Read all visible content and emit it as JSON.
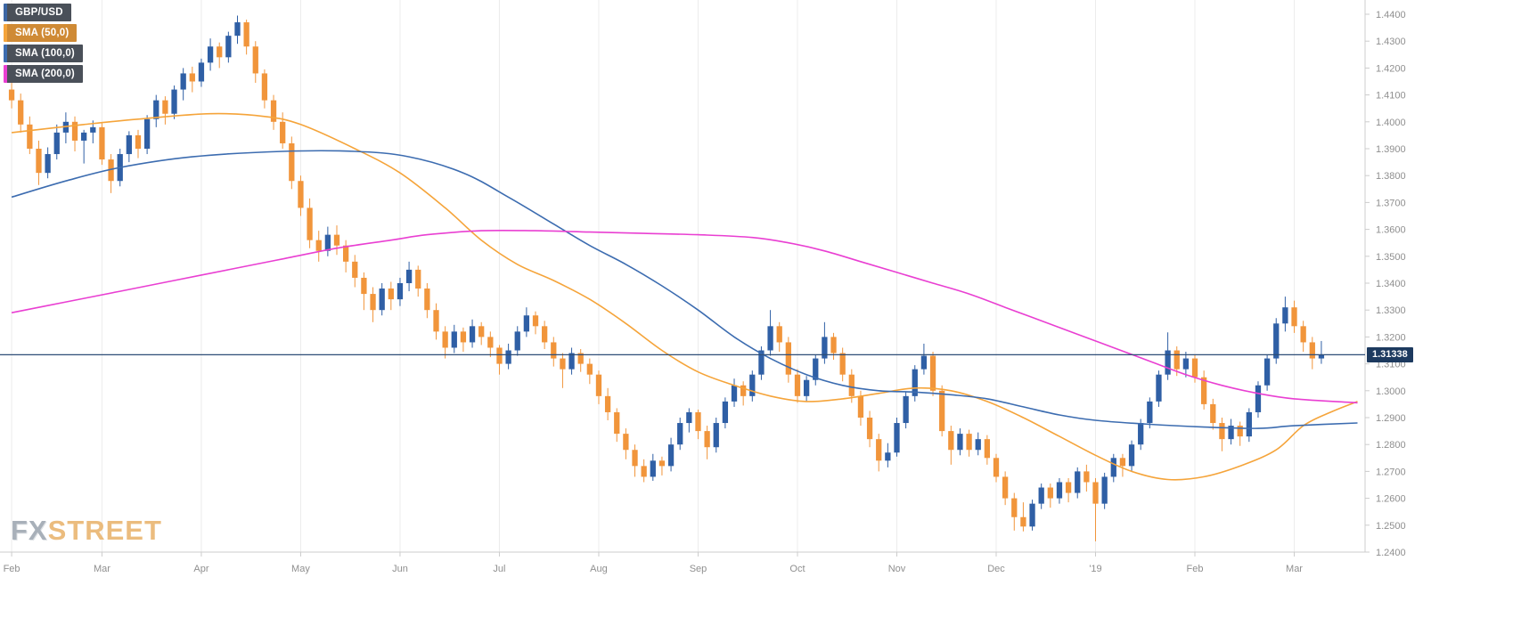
{
  "watermark": {
    "brand_fx": "FX",
    "brand_street": "STREET"
  },
  "chart_data": {
    "type": "candlestick",
    "pair": "GBP/USD",
    "legend": [
      {
        "label": "GBP/USD",
        "body": "#4a5059",
        "stripe": "#3c66a4"
      },
      {
        "label": "SMA (50,0)",
        "body": "#cf8a35",
        "stripe": "#f5a43a"
      },
      {
        "label": "SMA (100,0)",
        "body": "#4a5059",
        "stripe": "#3c6cb0"
      },
      {
        "label": "SMA (200,0)",
        "body": "#4a5059",
        "stripe": "#e93fd2"
      }
    ],
    "last_price": 1.31338,
    "last_price_label": "1.31338",
    "colors": {
      "up": "#2f5fa5",
      "down": "#f1953b",
      "sma50": "#f5a43a",
      "sma100": "#3c6cb0",
      "sma200": "#e93fd2",
      "price_line": "#2d4d77",
      "badge_bg": "#1d3a5f",
      "grid": "#ececec",
      "axis_line": "#cccccc",
      "axis_text": "#8f8f8f"
    },
    "axis": {
      "y_min": 1.24,
      "y_max": 1.44,
      "y_step": 0.01,
      "y_tick_labels": [
        "1.4400",
        "1.4300",
        "1.4200",
        "1.4100",
        "1.4000",
        "1.3900",
        "1.3800",
        "1.3700",
        "1.3600",
        "1.3500",
        "1.3400",
        "1.3300",
        "1.3200",
        "1.3100",
        "1.3000",
        "1.2900",
        "1.2800",
        "1.2700",
        "1.2600",
        "1.2500",
        "1.2400"
      ],
      "x_ticks": [
        {
          "label": "Feb",
          "i": 0
        },
        {
          "label": "Mar",
          "i": 10
        },
        {
          "label": "Apr",
          "i": 21
        },
        {
          "label": "May",
          "i": 32
        },
        {
          "label": "Jun",
          "i": 43
        },
        {
          "label": "Jul",
          "i": 54
        },
        {
          "label": "Aug",
          "i": 65
        },
        {
          "label": "Sep",
          "i": 76
        },
        {
          "label": "Oct",
          "i": 87
        },
        {
          "label": "Nov",
          "i": 98
        },
        {
          "label": "Dec",
          "i": 109
        },
        {
          "label": "'19",
          "i": 120
        },
        {
          "label": "Feb",
          "i": 131
        },
        {
          "label": "Mar",
          "i": 142
        }
      ]
    },
    "candles": [
      [
        1.412,
        1.4165,
        1.405,
        1.408
      ],
      [
        1.408,
        1.4105,
        1.396,
        1.399
      ],
      [
        1.399,
        1.402,
        1.388,
        1.39
      ],
      [
        1.39,
        1.393,
        1.3765,
        1.381
      ],
      [
        1.381,
        1.3905,
        1.379,
        1.388
      ],
      [
        1.388,
        1.399,
        1.386,
        1.396
      ],
      [
        1.396,
        1.4035,
        1.392,
        1.4
      ],
      [
        1.4,
        1.402,
        1.389,
        1.393
      ],
      [
        1.393,
        1.397,
        1.3845,
        1.396
      ],
      [
        1.396,
        1.4005,
        1.392,
        1.398
      ],
      [
        1.398,
        1.3995,
        1.384,
        1.386
      ],
      [
        1.386,
        1.388,
        1.3735,
        1.378
      ],
      [
        1.378,
        1.39,
        1.376,
        1.388
      ],
      [
        1.388,
        1.3965,
        1.385,
        1.395
      ],
      [
        1.395,
        1.397,
        1.3865,
        1.39
      ],
      [
        1.39,
        1.4025,
        1.388,
        1.401
      ],
      [
        1.401,
        1.41,
        1.398,
        1.408
      ],
      [
        1.408,
        1.4095,
        1.399,
        1.403
      ],
      [
        1.403,
        1.4135,
        1.401,
        1.412
      ],
      [
        1.412,
        1.42,
        1.408,
        1.418
      ],
      [
        1.418,
        1.4205,
        1.411,
        1.415
      ],
      [
        1.415,
        1.4235,
        1.413,
        1.422
      ],
      [
        1.422,
        1.431,
        1.419,
        1.428
      ],
      [
        1.428,
        1.4295,
        1.42,
        1.424
      ],
      [
        1.424,
        1.4335,
        1.422,
        1.432
      ],
      [
        1.432,
        1.4395,
        1.429,
        1.437
      ],
      [
        1.437,
        1.438,
        1.425,
        1.428
      ],
      [
        1.428,
        1.43,
        1.4145,
        1.418
      ],
      [
        1.418,
        1.4195,
        1.405,
        1.408
      ],
      [
        1.408,
        1.41,
        1.397,
        1.4
      ],
      [
        1.4,
        1.4035,
        1.39,
        1.392
      ],
      [
        1.392,
        1.3945,
        1.375,
        1.378
      ],
      [
        1.378,
        1.38,
        1.365,
        1.368
      ],
      [
        1.368,
        1.3715,
        1.353,
        1.356
      ],
      [
        1.356,
        1.3595,
        1.348,
        1.352
      ],
      [
        1.352,
        1.361,
        1.35,
        1.358
      ],
      [
        1.358,
        1.3615,
        1.3505,
        1.354
      ],
      [
        1.354,
        1.356,
        1.344,
        1.348
      ],
      [
        1.348,
        1.3505,
        1.3385,
        1.342
      ],
      [
        1.342,
        1.344,
        1.33,
        1.336
      ],
      [
        1.336,
        1.3385,
        1.3255,
        1.33
      ],
      [
        1.33,
        1.34,
        1.328,
        1.338
      ],
      [
        1.338,
        1.3405,
        1.33,
        1.334
      ],
      [
        1.334,
        1.342,
        1.3315,
        1.34
      ],
      [
        1.34,
        1.348,
        1.337,
        1.345
      ],
      [
        1.345,
        1.3465,
        1.335,
        1.338
      ],
      [
        1.338,
        1.34,
        1.327,
        1.33
      ],
      [
        1.33,
        1.3325,
        1.319,
        1.322
      ],
      [
        1.322,
        1.324,
        1.312,
        1.316
      ],
      [
        1.316,
        1.3245,
        1.314,
        1.322
      ],
      [
        1.322,
        1.3235,
        1.3145,
        1.318
      ],
      [
        1.318,
        1.3265,
        1.316,
        1.324
      ],
      [
        1.324,
        1.3255,
        1.317,
        1.32
      ],
      [
        1.32,
        1.322,
        1.3125,
        1.316
      ],
      [
        1.316,
        1.317,
        1.306,
        1.31
      ],
      [
        1.31,
        1.3175,
        1.308,
        1.315
      ],
      [
        1.315,
        1.324,
        1.313,
        1.322
      ],
      [
        1.322,
        1.331,
        1.32,
        1.328
      ],
      [
        1.328,
        1.3295,
        1.321,
        1.324
      ],
      [
        1.324,
        1.326,
        1.3155,
        1.318
      ],
      [
        1.318,
        1.32,
        1.309,
        1.312
      ],
      [
        1.312,
        1.314,
        1.301,
        1.308
      ],
      [
        1.308,
        1.316,
        1.306,
        1.314
      ],
      [
        1.314,
        1.3155,
        1.307,
        1.31
      ],
      [
        1.31,
        1.312,
        1.3025,
        1.306
      ],
      [
        1.306,
        1.3075,
        1.295,
        1.298
      ],
      [
        1.298,
        1.301,
        1.289,
        1.292
      ],
      [
        1.292,
        1.2935,
        1.281,
        1.284
      ],
      [
        1.284,
        1.286,
        1.2745,
        1.278
      ],
      [
        1.278,
        1.28,
        1.268,
        1.272
      ],
      [
        1.272,
        1.2745,
        1.266,
        1.268
      ],
      [
        1.268,
        1.2765,
        1.2665,
        1.274
      ],
      [
        1.274,
        1.2755,
        1.2685,
        1.272
      ],
      [
        1.272,
        1.2825,
        1.27,
        1.28
      ],
      [
        1.28,
        1.29,
        1.278,
        1.288
      ],
      [
        1.288,
        1.2935,
        1.2845,
        1.292
      ],
      [
        1.292,
        1.293,
        1.282,
        1.285
      ],
      [
        1.285,
        1.287,
        1.2745,
        1.279
      ],
      [
        1.279,
        1.29,
        1.277,
        1.288
      ],
      [
        1.288,
        1.2975,
        1.286,
        1.296
      ],
      [
        1.296,
        1.3045,
        1.294,
        1.302
      ],
      [
        1.302,
        1.3035,
        1.2945,
        1.298
      ],
      [
        1.298,
        1.3075,
        1.296,
        1.306
      ],
      [
        1.306,
        1.3165,
        1.304,
        1.315
      ],
      [
        1.315,
        1.33,
        1.313,
        1.324
      ],
      [
        1.324,
        1.3255,
        1.3145,
        1.318
      ],
      [
        1.318,
        1.32,
        1.303,
        1.306
      ],
      [
        1.306,
        1.308,
        1.2955,
        1.298
      ],
      [
        1.298,
        1.3055,
        1.296,
        1.304
      ],
      [
        1.304,
        1.3135,
        1.302,
        1.312
      ],
      [
        1.312,
        1.3255,
        1.31,
        1.32
      ],
      [
        1.32,
        1.3215,
        1.3115,
        1.314
      ],
      [
        1.314,
        1.316,
        1.3035,
        1.306
      ],
      [
        1.306,
        1.308,
        1.2955,
        1.298
      ],
      [
        1.298,
        1.3,
        1.287,
        1.29
      ],
      [
        1.29,
        1.2925,
        1.279,
        1.282
      ],
      [
        1.282,
        1.284,
        1.27,
        1.274
      ],
      [
        1.274,
        1.2805,
        1.2715,
        1.277
      ],
      [
        1.277,
        1.29,
        1.2755,
        1.288
      ],
      [
        1.288,
        1.2995,
        1.286,
        1.298
      ],
      [
        1.298,
        1.3095,
        1.296,
        1.308
      ],
      [
        1.308,
        1.3175,
        1.306,
        1.313
      ],
      [
        1.313,
        1.3145,
        1.298,
        1.3
      ],
      [
        1.3,
        1.302,
        1.283,
        1.285
      ],
      [
        1.285,
        1.287,
        1.2725,
        1.278
      ],
      [
        1.278,
        1.286,
        1.276,
        1.284
      ],
      [
        1.284,
        1.2855,
        1.2755,
        1.278
      ],
      [
        1.278,
        1.2845,
        1.276,
        1.282
      ],
      [
        1.282,
        1.2835,
        1.2725,
        1.275
      ],
      [
        1.275,
        1.2765,
        1.266,
        1.268
      ],
      [
        1.268,
        1.27,
        1.2575,
        1.26
      ],
      [
        1.26,
        1.262,
        1.248,
        1.253
      ],
      [
        1.253,
        1.2585,
        1.2477,
        1.2495
      ],
      [
        1.2495,
        1.2595,
        1.248,
        1.258
      ],
      [
        1.258,
        1.2655,
        1.256,
        1.264
      ],
      [
        1.264,
        1.2655,
        1.2565,
        1.26
      ],
      [
        1.26,
        1.2675,
        1.258,
        1.266
      ],
      [
        1.266,
        1.2675,
        1.2585,
        1.262
      ],
      [
        1.262,
        1.2715,
        1.26,
        1.27
      ],
      [
        1.27,
        1.2725,
        1.2625,
        1.266
      ],
      [
        1.266,
        1.2675,
        1.244,
        1.258
      ],
      [
        1.258,
        1.2695,
        1.256,
        1.268
      ],
      [
        1.268,
        1.2765,
        1.266,
        1.275
      ],
      [
        1.275,
        1.2765,
        1.268,
        1.272
      ],
      [
        1.272,
        1.2815,
        1.27,
        1.28
      ],
      [
        1.28,
        1.2895,
        1.278,
        1.288
      ],
      [
        1.288,
        1.2975,
        1.286,
        1.296
      ],
      [
        1.296,
        1.3075,
        1.294,
        1.306
      ],
      [
        1.306,
        1.3217,
        1.304,
        1.315
      ],
      [
        1.315,
        1.3165,
        1.3055,
        1.308
      ],
      [
        1.308,
        1.3145,
        1.305,
        1.312
      ],
      [
        1.312,
        1.3135,
        1.303,
        1.305
      ],
      [
        1.305,
        1.3075,
        1.293,
        1.295
      ],
      [
        1.295,
        1.297,
        1.2855,
        1.288
      ],
      [
        1.288,
        1.29,
        1.2775,
        1.282
      ],
      [
        1.282,
        1.2895,
        1.28,
        1.287
      ],
      [
        1.287,
        1.2885,
        1.2795,
        1.283
      ],
      [
        1.283,
        1.2935,
        1.281,
        1.292
      ],
      [
        1.292,
        1.3035,
        1.29,
        1.302
      ],
      [
        1.302,
        1.3135,
        1.3,
        1.312
      ],
      [
        1.312,
        1.327,
        1.31,
        1.325
      ],
      [
        1.325,
        1.335,
        1.322,
        1.331
      ],
      [
        1.331,
        1.3335,
        1.3215,
        1.324
      ],
      [
        1.324,
        1.326,
        1.3145,
        1.318
      ],
      [
        1.318,
        1.32,
        1.308,
        1.312
      ],
      [
        1.312,
        1.3185,
        1.31,
        1.3134
      ]
    ],
    "smas": [
      {
        "name": "SMA (50,0)",
        "color_key": "sma50",
        "points": [
          [
            0,
            1.396
          ],
          [
            8,
            1.399
          ],
          [
            14,
            1.401
          ],
          [
            22,
            1.403
          ],
          [
            28,
            1.402
          ],
          [
            32,
            1.399
          ],
          [
            38,
            1.39
          ],
          [
            43,
            1.381
          ],
          [
            48,
            1.368
          ],
          [
            52,
            1.356
          ],
          [
            56,
            1.347
          ],
          [
            60,
            1.341
          ],
          [
            64,
            1.334
          ],
          [
            68,
            1.325
          ],
          [
            72,
            1.315
          ],
          [
            76,
            1.307
          ],
          [
            80,
            1.302
          ],
          [
            84,
            1.298
          ],
          [
            88,
            1.296
          ],
          [
            92,
            1.297
          ],
          [
            96,
            1.299
          ],
          [
            100,
            1.301
          ],
          [
            104,
            1.3
          ],
          [
            108,
            1.296
          ],
          [
            112,
            1.29
          ],
          [
            116,
            1.283
          ],
          [
            120,
            1.276
          ],
          [
            124,
            1.27
          ],
          [
            128,
            1.267
          ],
          [
            132,
            1.268
          ],
          [
            136,
            1.272
          ],
          [
            140,
            1.278
          ],
          [
            143,
            1.287
          ],
          [
            146,
            1.292
          ],
          [
            149,
            1.296
          ]
        ]
      },
      {
        "name": "SMA (100,0)",
        "color_key": "sma100",
        "points": [
          [
            0,
            1.372
          ],
          [
            6,
            1.378
          ],
          [
            12,
            1.383
          ],
          [
            20,
            1.387
          ],
          [
            30,
            1.389
          ],
          [
            38,
            1.389
          ],
          [
            44,
            1.387
          ],
          [
            50,
            1.381
          ],
          [
            55,
            1.372
          ],
          [
            60,
            1.362
          ],
          [
            64,
            1.354
          ],
          [
            68,
            1.347
          ],
          [
            72,
            1.339
          ],
          [
            76,
            1.33
          ],
          [
            80,
            1.32
          ],
          [
            84,
            1.312
          ],
          [
            88,
            1.306
          ],
          [
            92,
            1.302
          ],
          [
            96,
            1.3
          ],
          [
            100,
            1.2995
          ],
          [
            104,
            1.2985
          ],
          [
            108,
            1.297
          ],
          [
            112,
            1.294
          ],
          [
            116,
            1.291
          ],
          [
            120,
            1.289
          ],
          [
            126,
            1.2875
          ],
          [
            132,
            1.2865
          ],
          [
            138,
            1.286
          ],
          [
            142,
            1.287
          ],
          [
            149,
            1.288
          ]
        ]
      },
      {
        "name": "SMA (200,0)",
        "color_key": "sma200",
        "points": [
          [
            0,
            1.329
          ],
          [
            6,
            1.333
          ],
          [
            12,
            1.337
          ],
          [
            18,
            1.341
          ],
          [
            24,
            1.345
          ],
          [
            30,
            1.349
          ],
          [
            36,
            1.353
          ],
          [
            42,
            1.356
          ],
          [
            46,
            1.358
          ],
          [
            52,
            1.3595
          ],
          [
            58,
            1.3595
          ],
          [
            64,
            1.359
          ],
          [
            70,
            1.3585
          ],
          [
            76,
            1.358
          ],
          [
            82,
            1.357
          ],
          [
            86,
            1.355
          ],
          [
            90,
            1.352
          ],
          [
            94,
            1.348
          ],
          [
            98,
            1.344
          ],
          [
            102,
            1.34
          ],
          [
            106,
            1.336
          ],
          [
            110,
            1.331
          ],
          [
            114,
            1.326
          ],
          [
            118,
            1.321
          ],
          [
            122,
            1.316
          ],
          [
            126,
            1.311
          ],
          [
            130,
            1.306
          ],
          [
            134,
            1.302
          ],
          [
            138,
            1.299
          ],
          [
            142,
            1.297
          ],
          [
            149,
            1.2955
          ]
        ]
      }
    ]
  }
}
